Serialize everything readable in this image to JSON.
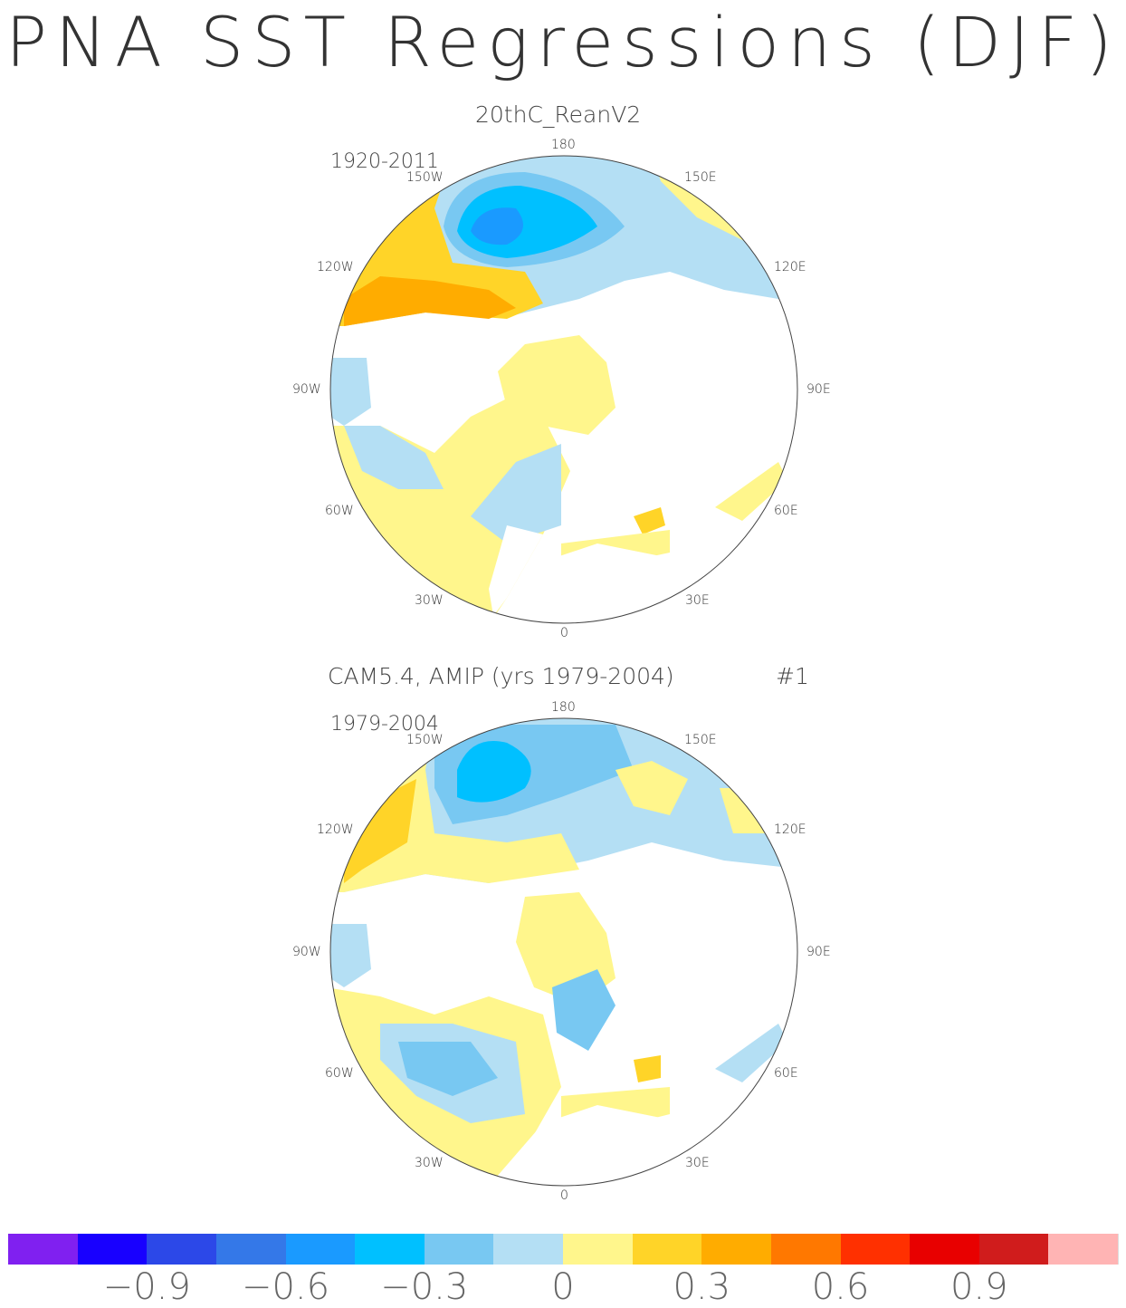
{
  "title": "PNA SST Regressions (DJF)",
  "panels": [
    {
      "model": "20thC_ReanV2",
      "period": "1920-2011",
      "extra": ""
    },
    {
      "model": "CAM5.4, AMIP (yrs 1979-2004)",
      "period": "1979-2004",
      "extra": "#1"
    }
  ],
  "longitude_labels": {
    "top": "180",
    "bottom": "0",
    "l150": "150W",
    "r150": "150E",
    "l120": "120W",
    "r120": "120E",
    "l90": "90W",
    "r90": "90E",
    "l60": "60W",
    "r60": "60E",
    "l30": "30W",
    "r30": "30E"
  },
  "colorbar": {
    "colors": [
      "#8020f0",
      "#1800ff",
      "#2c48e8",
      "#3478e8",
      "#1a9aff",
      "#00c0ff",
      "#78c8f2",
      "#b4dff4",
      "#fff68c",
      "#ffd428",
      "#ffac00",
      "#ff7800",
      "#ff3000",
      "#e80000",
      "#d01c1c",
      "#ffb4b4"
    ],
    "levels": [
      -1.05,
      -0.9,
      -0.75,
      -0.6,
      -0.45,
      -0.3,
      -0.15,
      0,
      0.15,
      0.3,
      0.45,
      0.6,
      0.75,
      0.9,
      1.05
    ],
    "tick_labels": [
      "−0.9",
      "−0.6",
      "−0.3",
      "0",
      "0.3",
      "0.6",
      "0.9"
    ]
  }
}
